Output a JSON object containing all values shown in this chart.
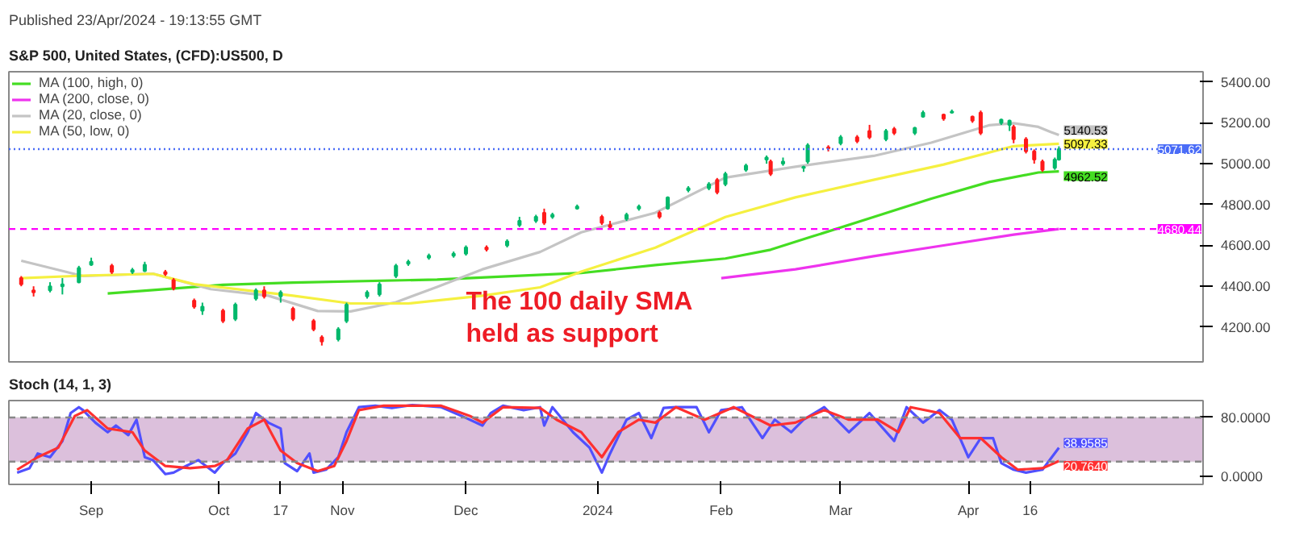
{
  "chart_data": [
    {
      "type": "candlestick",
      "title": "S&P 500, United States, (CFD):US500, D",
      "annotations": [
        "Published 23/Apr/2024 - 19:13:55 GMT",
        {
          "text": "The 100 daily SMA\nheld as support",
          "x": "2023-12-01",
          "y": 4390
        }
      ],
      "x": [
        "2023-08-15",
        "2023-08-18",
        "2023-08-22",
        "2023-08-25",
        "2023-08-29",
        "2023-09-01",
        "2023-09-06",
        "2023-09-11",
        "2023-09-14",
        "2023-09-19",
        "2023-09-21",
        "2023-09-26",
        "2023-09-28",
        "2023-10-03",
        "2023-10-06",
        "2023-10-11",
        "2023-10-13",
        "2023-10-17",
        "2023-10-20",
        "2023-10-25",
        "2023-10-27",
        "2023-10-31",
        "2023-11-02",
        "2023-11-07",
        "2023-11-10",
        "2023-11-14",
        "2023-11-17",
        "2023-11-22",
        "2023-11-28",
        "2023-12-01",
        "2023-12-06",
        "2023-12-11",
        "2023-12-14",
        "2023-12-18",
        "2023-12-20",
        "2023-12-22",
        "2023-12-28",
        "2024-01-03",
        "2024-01-05",
        "2024-01-09",
        "2024-01-12",
        "2024-01-17",
        "2024-01-19",
        "2024-01-24",
        "2024-01-29",
        "2024-01-31",
        "2024-02-02",
        "2024-02-07",
        "2024-02-12",
        "2024-02-13",
        "2024-02-16",
        "2024-02-21",
        "2024-02-22",
        "2024-02-27",
        "2024-03-01",
        "2024-03-05",
        "2024-03-08",
        "2024-03-12",
        "2024-03-14",
        "2024-03-19",
        "2024-03-21",
        "2024-03-26",
        "2024-03-28",
        "2024-04-02",
        "2024-04-04",
        "2024-04-09",
        "2024-04-11",
        "2024-04-12",
        "2024-04-15",
        "2024-04-17",
        "2024-04-19",
        "2024-04-22",
        "2024-04-23"
      ],
      "ohlc": [
        [
          4440,
          4450,
          4400,
          4410
        ],
        [
          4380,
          4400,
          4350,
          4370
        ],
        [
          4380,
          4420,
          4370,
          4400
        ],
        [
          4400,
          4440,
          4360,
          4410
        ],
        [
          4420,
          4500,
          4415,
          4490
        ],
        [
          4505,
          4540,
          4500,
          4520
        ],
        [
          4500,
          4510,
          4460,
          4470
        ],
        [
          4470,
          4490,
          4460,
          4480
        ],
        [
          4475,
          4520,
          4470,
          4505
        ],
        [
          4470,
          4480,
          4450,
          4460
        ],
        [
          4430,
          4440,
          4380,
          4390
        ],
        [
          4330,
          4340,
          4290,
          4300
        ],
        [
          4280,
          4320,
          4260,
          4300
        ],
        [
          4280,
          4290,
          4220,
          4230
        ],
        [
          4240,
          4320,
          4230,
          4310
        ],
        [
          4340,
          4390,
          4330,
          4380
        ],
        [
          4380,
          4400,
          4340,
          4350
        ],
        [
          4350,
          4380,
          4320,
          4370
        ],
        [
          4290,
          4300,
          4230,
          4240
        ],
        [
          4230,
          4240,
          4180,
          4190
        ],
        [
          4150,
          4160,
          4110,
          4130
        ],
        [
          4140,
          4200,
          4130,
          4190
        ],
        [
          4230,
          4320,
          4220,
          4310
        ],
        [
          4350,
          4380,
          4340,
          4370
        ],
        [
          4360,
          4420,
          4350,
          4410
        ],
        [
          4450,
          4510,
          4440,
          4500
        ],
        [
          4510,
          4530,
          4500,
          4520
        ],
        [
          4540,
          4560,
          4530,
          4550
        ],
        [
          4550,
          4570,
          4540,
          4560
        ],
        [
          4560,
          4600,
          4550,
          4590
        ],
        [
          4590,
          4600,
          4570,
          4580
        ],
        [
          4600,
          4630,
          4590,
          4620
        ],
        [
          4700,
          4740,
          4690,
          4720
        ],
        [
          4720,
          4750,
          4710,
          4740
        ],
        [
          4760,
          4780,
          4700,
          4710
        ],
        [
          4740,
          4760,
          4730,
          4750
        ],
        [
          4780,
          4800,
          4775,
          4790
        ],
        [
          4740,
          4750,
          4700,
          4710
        ],
        [
          4700,
          4720,
          4680,
          4690
        ],
        [
          4730,
          4760,
          4720,
          4750
        ],
        [
          4780,
          4800,
          4770,
          4790
        ],
        [
          4760,
          4770,
          4730,
          4740
        ],
        [
          4780,
          4840,
          4775,
          4835
        ],
        [
          4870,
          4890,
          4860,
          4880
        ],
        [
          4880,
          4910,
          4870,
          4900
        ],
        [
          4920,
          4930,
          4850,
          4860
        ],
        [
          4900,
          4960,
          4890,
          4950
        ],
        [
          4970,
          5000,
          4960,
          4990
        ],
        [
          5020,
          5040,
          5000,
          5030
        ],
        [
          5010,
          5020,
          4940,
          4950
        ],
        [
          5000,
          5030,
          4990,
          5010
        ],
        [
          4980,
          4990,
          4960,
          4985
        ],
        [
          5010,
          5100,
          5000,
          5090
        ],
        [
          5080,
          5090,
          5060,
          5075
        ],
        [
          5100,
          5140,
          5090,
          5130
        ],
        [
          5130,
          5140,
          5100,
          5110
        ],
        [
          5160,
          5190,
          5120,
          5130
        ],
        [
          5120,
          5170,
          5110,
          5160
        ],
        [
          5170,
          5180,
          5140,
          5150
        ],
        [
          5150,
          5180,
          5140,
          5175
        ],
        [
          5230,
          5260,
          5225,
          5250
        ],
        [
          5240,
          5245,
          5210,
          5220
        ],
        [
          5250,
          5265,
          5245,
          5255
        ],
        [
          5230,
          5235,
          5200,
          5210
        ],
        [
          5250,
          5260,
          5140,
          5150
        ],
        [
          5200,
          5220,
          5190,
          5215
        ],
        [
          5190,
          5215,
          5160,
          5210
        ],
        [
          5180,
          5190,
          5100,
          5120
        ],
        [
          5120,
          5130,
          5050,
          5060
        ],
        [
          5060,
          5070,
          5000,
          5020
        ],
        [
          5010,
          5020,
          4960,
          4970
        ],
        [
          4980,
          5030,
          4970,
          5020
        ],
        [
          5020,
          5085,
          5015,
          5071.62
        ]
      ],
      "colors": [
        "#ff1a1a",
        "#ff1a1a",
        "#00b86b",
        "#00b86b",
        "#00b86b",
        "#00b86b",
        "#ff1a1a",
        "#00b86b",
        "#00b86b",
        "#ff1a1a",
        "#ff1a1a",
        "#ff1a1a",
        "#00b86b",
        "#ff1a1a",
        "#00b86b",
        "#00b86b",
        "#ff1a1a",
        "#00b86b",
        "#ff1a1a",
        "#ff1a1a",
        "#ff1a1a",
        "#00b86b",
        "#00b86b",
        "#00b86b",
        "#00b86b",
        "#00b86b",
        "#00b86b",
        "#00b86b",
        "#00b86b",
        "#00b86b",
        "#ff1a1a",
        "#00b86b",
        "#00b86b",
        "#00b86b",
        "#ff1a1a",
        "#00b86b",
        "#00b86b",
        "#ff1a1a",
        "#ff1a1a",
        "#00b86b",
        "#00b86b",
        "#ff1a1a",
        "#00b86b",
        "#00b86b",
        "#00b86b",
        "#ff1a1a",
        "#00b86b",
        "#00b86b",
        "#00b86b",
        "#ff1a1a",
        "#00b86b",
        "#00b86b",
        "#00b86b",
        "#ff1a1a",
        "#00b86b",
        "#ff1a1a",
        "#ff1a1a",
        "#00b86b",
        "#ff1a1a",
        "#00b86b",
        "#00b86b",
        "#ff1a1a",
        "#00b86b",
        "#ff1a1a",
        "#ff1a1a",
        "#00b86b",
        "#00b86b",
        "#ff1a1a",
        "#ff1a1a",
        "#ff1a1a",
        "#ff1a1a",
        "#00b86b",
        "#00b86b"
      ],
      "series": [
        {
          "type": "line",
          "name": "MA (100, high, 0)",
          "color": "#44dd22",
          "x": [
            "2023-09-05",
            "2023-10-03",
            "2023-10-20",
            "2023-11-24",
            "2023-12-29",
            "2024-01-16",
            "2024-02-02",
            "2024-02-13",
            "2024-02-23",
            "2024-03-09",
            "2024-03-23",
            "2024-04-06",
            "2024-04-18",
            "2024-04-23"
          ],
          "values": [
            4365,
            4407,
            4418,
            4433,
            4465,
            4504,
            4536,
            4579,
            4643,
            4739,
            4829,
            4910,
            4957,
            4962.52
          ],
          "value_labels": [
            null,
            null,
            null,
            null,
            null,
            null,
            null,
            null,
            null,
            null,
            null,
            null,
            null,
            "4962.52"
          ]
        },
        {
          "type": "line",
          "name": "MA (200, close, 0)",
          "color": "#ee33ee",
          "x": [
            "2024-02-01",
            "2024-02-19",
            "2024-03-09",
            "2024-03-26",
            "2024-04-12",
            "2024-04-23"
          ],
          "values": [
            4440,
            4483,
            4547,
            4600,
            4653,
            4680.44
          ]
        },
        {
          "type": "line",
          "name": "MA (20, close, 0)",
          "color": "#c4c4c4",
          "x": [
            "2023-08-15",
            "2023-08-30",
            "2023-09-16",
            "2023-09-30",
            "2023-10-14",
            "2023-10-26",
            "2023-11-03",
            "2023-11-14",
            "2023-11-24",
            "2023-12-05",
            "2023-12-19",
            "2023-12-29",
            "2024-01-16",
            "2024-02-02",
            "2024-02-19",
            "2024-03-09",
            "2024-03-23",
            "2024-03-30",
            "2024-04-06",
            "2024-04-12",
            "2024-04-18",
            "2024-04-21",
            "2024-04-23"
          ],
          "values": [
            4525,
            4450,
            4462,
            4386,
            4354,
            4279,
            4277,
            4322,
            4397,
            4483,
            4568,
            4664,
            4760,
            4932,
            4985,
            5038,
            5103,
            5145,
            5188,
            5198,
            5180,
            5155,
            5140.53
          ],
          "value_labels": [
            null,
            null,
            null,
            null,
            null,
            null,
            null,
            null,
            null,
            null,
            null,
            null,
            null,
            null,
            null,
            null,
            null,
            null,
            null,
            null,
            null,
            null,
            "5140.53"
          ]
        },
        {
          "type": "line",
          "name": "MA (50, low, 0)",
          "color": "#f5f040",
          "x": [
            "2023-08-15",
            "2023-08-30",
            "2023-09-16",
            "2023-09-26",
            "2023-10-20",
            "2023-11-03",
            "2023-11-17",
            "2023-12-05",
            "2023-12-19",
            "2023-12-29",
            "2024-01-16",
            "2024-02-02",
            "2024-02-19",
            "2024-03-09",
            "2024-03-26",
            "2024-04-12",
            "2024-04-23"
          ],
          "values": [
            4440,
            4452,
            4461,
            4410,
            4354,
            4316,
            4316,
            4354,
            4395,
            4472,
            4589,
            4739,
            4835,
            4921,
            4996,
            5086,
            5097.33
          ],
          "value_labels": [
            null,
            null,
            null,
            null,
            null,
            null,
            null,
            null,
            null,
            null,
            null,
            null,
            null,
            null,
            null,
            null,
            "5097.33"
          ]
        }
      ],
      "xlim": [
        "2023-08-12",
        "2024-05-28"
      ],
      "ylim": [
        4030,
        5450
      ],
      "yticks": [
        {
          "value": 4200,
          "label": "4200.00"
        },
        {
          "value": 4400,
          "label": "4400.00"
        },
        {
          "value": 4600,
          "label": "4600.00"
        },
        {
          "value": 4800,
          "label": "4800.00"
        },
        {
          "value": 5000,
          "label": "5000.00"
        },
        {
          "value": 5200,
          "label": "5200.00"
        },
        {
          "value": 5400,
          "label": "5400.00"
        }
      ],
      "ref_lines": [
        {
          "axis": "y",
          "value": 4680.44,
          "label": "4680.44",
          "color": "#ff00ff",
          "line_style": "dashed"
        },
        {
          "axis": "y",
          "value": 5071.62,
          "label": "5071.62",
          "color": "#4a6cf7",
          "line_style": "dotted"
        }
      ],
      "legend": "top left",
      "tick_labels": "y"
    },
    {
      "type": "line",
      "title": "Stoch (14, 1, 3)",
      "series": [
        {
          "color": "#5050ff",
          "x": [
            "2023-08-14",
            "2023-08-17",
            "2023-08-19",
            "2023-08-22",
            "2023-08-25",
            "2023-08-27",
            "2023-08-29",
            "2023-08-30",
            "2023-09-02",
            "2023-09-05",
            "2023-09-07",
            "2023-09-10",
            "2023-09-12",
            "2023-09-14",
            "2023-09-16",
            "2023-09-19",
            "2023-09-21",
            "2023-09-24",
            "2023-09-27",
            "2023-10-01",
            "2023-10-03",
            "2023-10-06",
            "2023-10-09",
            "2023-10-11",
            "2023-10-14",
            "2023-10-17",
            "2023-10-18",
            "2023-10-21",
            "2023-10-24",
            "2023-10-25",
            "2023-10-28",
            "2023-10-31",
            "2023-11-02",
            "2023-11-05",
            "2023-11-09",
            "2023-11-13",
            "2023-11-18",
            "2023-11-25",
            "2023-11-30",
            "2023-12-05",
            "2023-12-07",
            "2023-12-10",
            "2023-12-15",
            "2023-12-19",
            "2023-12-20",
            "2023-12-22",
            "2023-12-27",
            "2023-12-31",
            "2024-01-03",
            "2024-01-05",
            "2024-01-09",
            "2024-01-12",
            "2024-01-15",
            "2024-01-18",
            "2024-01-21",
            "2024-01-26",
            "2024-01-29",
            "2024-02-01",
            "2024-02-06",
            "2024-02-11",
            "2024-02-14",
            "2024-02-18",
            "2024-02-21",
            "2024-02-26",
            "2024-03-03",
            "2024-03-08",
            "2024-03-14",
            "2024-03-17",
            "2024-03-21",
            "2024-03-25",
            "2024-03-28",
            "2024-04-01",
            "2024-04-04",
            "2024-04-07",
            "2024-04-09",
            "2024-04-12",
            "2024-04-15",
            "2024-04-19",
            "2024-04-23"
          ],
          "values": [
            5,
            11,
            31,
            26,
            48,
            86,
            94,
            90,
            73,
            60,
            69,
            56,
            77,
            26,
            22,
            3,
            5,
            14,
            22,
            5,
            18,
            31,
            60,
            86,
            73,
            65,
            18,
            7,
            31,
            5,
            9,
            26,
            60,
            94,
            96,
            93,
            97,
            94,
            82,
            69,
            86,
            96,
            90,
            94,
            69,
            94,
            60,
            39,
            5,
            31,
            77,
            86,
            52,
            93,
            94,
            94,
            60,
            90,
            94,
            52,
            77,
            60,
            77,
            94,
            60,
            86,
            48,
            94,
            73,
            90,
            77,
            26,
            52,
            52,
            18,
            9,
            5,
            9,
            38.9585
          ],
          "value_labels": [
            null,
            null,
            null,
            null,
            null,
            null,
            null,
            null,
            null,
            null,
            null,
            null,
            null,
            null,
            null,
            null,
            null,
            null,
            null,
            null,
            null,
            null,
            null,
            null,
            null,
            null,
            null,
            null,
            null,
            null,
            null,
            null,
            null,
            null,
            null,
            null,
            null,
            null,
            null,
            null,
            null,
            null,
            null,
            null,
            null,
            null,
            null,
            null,
            null,
            null,
            null,
            null,
            null,
            null,
            null,
            null,
            null,
            null,
            null,
            null,
            null,
            null,
            null,
            null,
            null,
            null,
            null,
            null,
            null,
            null,
            null,
            null,
            null,
            null,
            null,
            null,
            null,
            null,
            "38.9585"
          ]
        },
        {
          "color": "#ff3030",
          "x": [
            "2023-08-14",
            "2023-08-19",
            "2023-08-24",
            "2023-08-28",
            "2023-08-31",
            "2023-09-05",
            "2023-09-11",
            "2023-09-14",
            "2023-09-19",
            "2023-09-25",
            "2023-10-01",
            "2023-10-04",
            "2023-10-09",
            "2023-10-13",
            "2023-10-17",
            "2023-10-21",
            "2023-10-26",
            "2023-10-30",
            "2023-11-02",
            "2023-11-05",
            "2023-11-11",
            "2023-11-25",
            "2023-12-02",
            "2023-12-05",
            "2023-12-10",
            "2023-12-19",
            "2023-12-23",
            "2023-12-29",
            "2024-01-03",
            "2024-01-07",
            "2024-01-12",
            "2024-01-16",
            "2024-01-21",
            "2024-01-28",
            "2024-02-04",
            "2024-02-13",
            "2024-02-19",
            "2024-02-26",
            "2024-03-03",
            "2024-03-10",
            "2024-03-15",
            "2024-03-18",
            "2024-03-25",
            "2024-03-30",
            "2024-04-04",
            "2024-04-09",
            "2024-04-13",
            "2024-04-19",
            "2024-04-23"
          ],
          "values": [
            9,
            26,
            39,
            82,
            90,
            65,
            60,
            35,
            14,
            11,
            14,
            22,
            65,
            77,
            35,
            18,
            7,
            14,
            48,
            90,
            96,
            96,
            82,
            73,
            94,
            93,
            77,
            60,
            26,
            60,
            77,
            73,
            94,
            77,
            94,
            69,
            73,
            90,
            77,
            77,
            60,
            94,
            86,
            52,
            52,
            26,
            9,
            11,
            20.764
          ],
          "value_labels": [
            null,
            null,
            null,
            null,
            null,
            null,
            null,
            null,
            null,
            null,
            null,
            null,
            null,
            null,
            null,
            null,
            null,
            null,
            null,
            null,
            null,
            null,
            null,
            null,
            null,
            null,
            null,
            null,
            null,
            null,
            null,
            null,
            null,
            null,
            null,
            null,
            null,
            null,
            null,
            null,
            null,
            null,
            null,
            null,
            null,
            null,
            null,
            null,
            "20.7640"
          ]
        }
      ],
      "xlim": [
        "2023-08-12",
        "2024-05-28"
      ],
      "xticks": [
        {
          "value": "2023-09-01",
          "label": "Sep"
        },
        {
          "value": "2023-10-02",
          "label": "Oct"
        },
        {
          "value": "2023-10-17",
          "label": "17"
        },
        {
          "value": "2023-11-01",
          "label": "Nov"
        },
        {
          "value": "2023-12-01",
          "label": "Dec"
        },
        {
          "value": "2024-01-02",
          "label": "2024"
        },
        {
          "value": "2024-02-01",
          "label": "Feb"
        },
        {
          "value": "2024-03-01",
          "label": "Mar"
        },
        {
          "value": "2024-04-01",
          "label": "Apr"
        },
        {
          "value": "2024-04-16",
          "label": "16"
        }
      ],
      "ylim": [
        -11,
        103
      ],
      "yticks": [
        {
          "value": 0,
          "label": "0.0000"
        },
        {
          "value": 80,
          "label": "80.0000"
        }
      ],
      "bands": [
        {
          "axis": "y",
          "from": 20,
          "to": 80,
          "color": "#dcc0dc"
        }
      ],
      "ref_lines": [
        {
          "axis": "y",
          "value": 80,
          "color": "#888888",
          "line_style": "dashed"
        },
        {
          "axis": "y",
          "value": 20,
          "color": "#888888",
          "line_style": "dashed"
        }
      ]
    }
  ]
}
